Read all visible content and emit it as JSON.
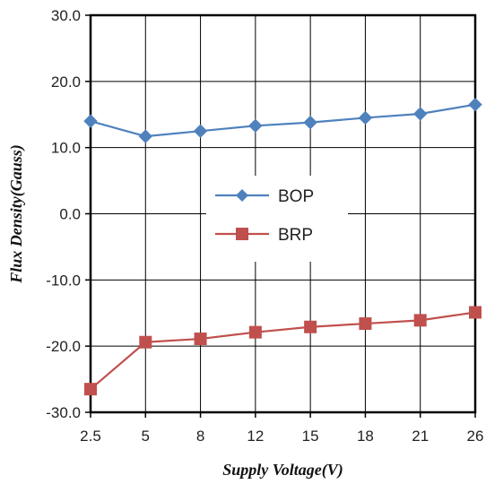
{
  "chart_data": {
    "type": "line",
    "categories": [
      "2.5",
      "5",
      "8",
      "12",
      "15",
      "18",
      "21",
      "26"
    ],
    "series": [
      {
        "name": "BOP",
        "color": "#4f81bd",
        "marker": "diamond",
        "values": [
          14.0,
          11.7,
          12.5,
          13.3,
          13.8,
          14.5,
          15.1,
          16.5
        ]
      },
      {
        "name": "BRP",
        "color": "#c0504d",
        "marker": "square",
        "values": [
          -26.5,
          -19.4,
          -18.9,
          -17.9,
          -17.1,
          -16.6,
          -16.1,
          -14.9
        ]
      }
    ],
    "ylim": [
      -30,
      30
    ],
    "yticks": [
      -30,
      -20,
      -10,
      0,
      10,
      20,
      30
    ],
    "ytick_labels": [
      "-30.0",
      "-20.0",
      "-10.0",
      "0.0",
      "10.0",
      "20.0",
      "30.0"
    ],
    "xlabel": "Supply Voltage(V)",
    "ylabel": "Flux Density(Gauss)",
    "grid": true,
    "legend_position": "center"
  }
}
